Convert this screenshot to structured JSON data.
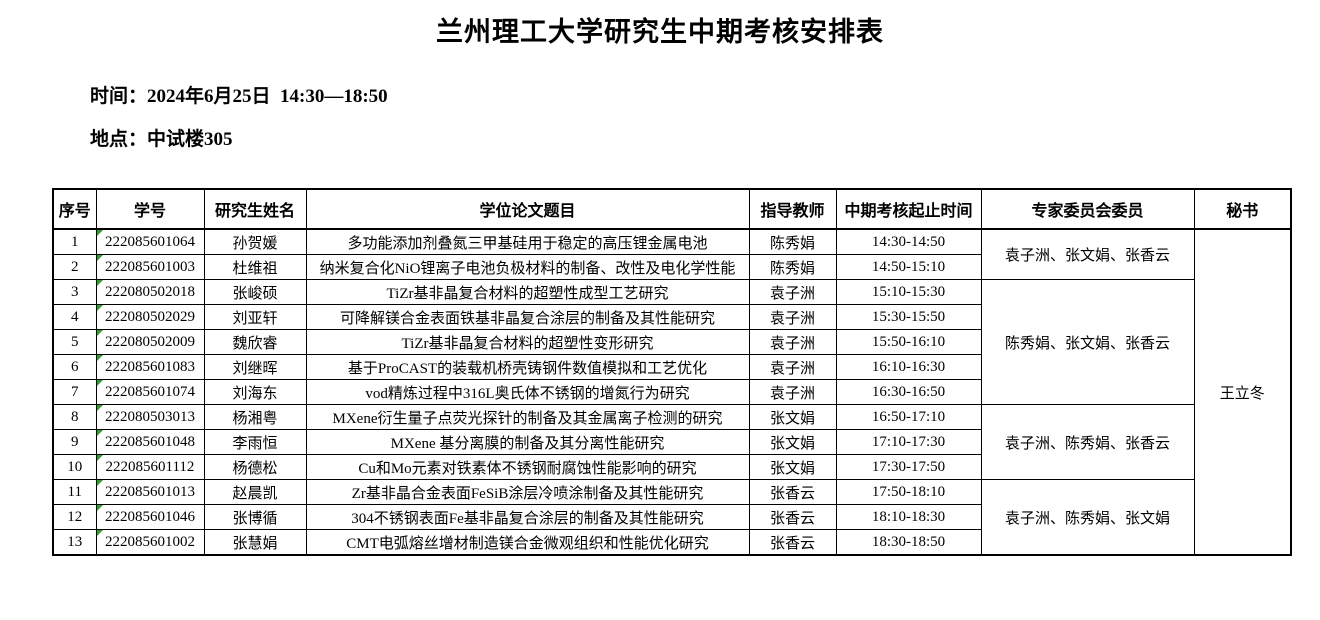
{
  "page": {
    "title": "兰州理工大学研究生中期考核安排表",
    "time_line": "时间：2024年6月25日  14:30—18:50",
    "location_line": "地点：中试楼305"
  },
  "colors": {
    "border": "#000000",
    "background": "#FFFFFF",
    "excel_marker_green": "#2E9E2E"
  },
  "table": {
    "headers": [
      "序号",
      "学号",
      "研究生姓名",
      "学位论文题目",
      "指导教师",
      "中期考核起止时间",
      "专家委员会委员",
      "秘书"
    ],
    "rows": [
      {
        "no": "1",
        "id": "222085601064",
        "name": "孙贺媛",
        "thesis": "多功能添加剂叠氮三甲基硅用于稳定的高压锂金属电池",
        "advisor": "陈秀娟",
        "time": "14:30-14:50"
      },
      {
        "no": "2",
        "id": "222085601003",
        "name": "杜维祖",
        "thesis": "纳米复合化NiO锂离子电池负极材料的制备、改性及电化学性能",
        "advisor": "陈秀娟",
        "time": "14:50-15:10"
      },
      {
        "no": "3",
        "id": "222080502018",
        "name": "张峻硕",
        "thesis": "TiZr基非晶复合材料的超塑性成型工艺研究",
        "advisor": "袁子洲",
        "time": "15:10-15:30"
      },
      {
        "no": "4",
        "id": "222080502029",
        "name": "刘亚轩",
        "thesis": "可降解镁合金表面铁基非晶复合涂层的制备及其性能研究",
        "advisor": "袁子洲",
        "time": "15:30-15:50"
      },
      {
        "no": "5",
        "id": "222080502009",
        "name": "魏欣睿",
        "thesis": "TiZr基非晶复合材料的超塑性变形研究",
        "advisor": "袁子洲",
        "time": "15:50-16:10"
      },
      {
        "no": "6",
        "id": "222085601083",
        "name": "刘继晖",
        "thesis": "基于ProCAST的装载机桥壳铸钢件数值模拟和工艺优化",
        "advisor": "袁子洲",
        "time": "16:10-16:30"
      },
      {
        "no": "7",
        "id": "222085601074",
        "name": "刘海东",
        "thesis": "vod精炼过程中316L奥氏体不锈钢的增氮行为研究",
        "advisor": "袁子洲",
        "time": "16:30-16:50"
      },
      {
        "no": "8",
        "id": "222080503013",
        "name": "杨湘粤",
        "thesis": "MXene衍生量子点荧光探针的制备及其金属离子检测的研究",
        "advisor": "张文娟",
        "time": "16:50-17:10"
      },
      {
        "no": "9",
        "id": "222085601048",
        "name": "李雨恒",
        "thesis": "MXene 基分离膜的制备及其分离性能研究",
        "advisor": "张文娟",
        "time": "17:10-17:30"
      },
      {
        "no": "10",
        "id": "222085601112",
        "name": "杨德松",
        "thesis": "Cu和Mo元素对铁素体不锈钢耐腐蚀性能影响的研究",
        "advisor": "张文娟",
        "time": "17:30-17:50"
      },
      {
        "no": "11",
        "id": "222085601013",
        "name": "赵晨凯",
        "thesis": "Zr基非晶合金表面FeSiB涂层冷喷涂制备及其性能研究",
        "advisor": "张香云",
        "time": "17:50-18:10"
      },
      {
        "no": "12",
        "id": "222085601046",
        "name": "张博循",
        "thesis": "304不锈钢表面Fe基非晶复合涂层的制备及其性能研究",
        "advisor": "张香云",
        "time": "18:10-18:30"
      },
      {
        "no": "13",
        "id": "222085601002",
        "name": "张慧娟",
        "thesis": "CMT电弧熔丝增材制造镁合金微观组织和性能优化研究",
        "advisor": "张香云",
        "time": "18:30-18:50"
      }
    ],
    "committee_groups": [
      {
        "start": 0,
        "span": 2,
        "members": "袁子洲、张文娟、张香云"
      },
      {
        "start": 2,
        "span": 5,
        "members": "陈秀娟、张文娟、张香云"
      },
      {
        "start": 7,
        "span": 3,
        "members": "袁子洲、陈秀娟、张香云"
      },
      {
        "start": 10,
        "span": 3,
        "members": "袁子洲、陈秀娟、张文娟"
      }
    ],
    "secretary": "王立冬"
  }
}
